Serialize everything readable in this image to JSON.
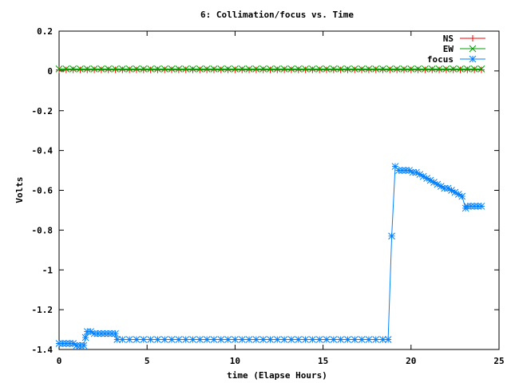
{
  "chart_data": {
    "type": "line",
    "title": "6: Collimation/focus vs. Time",
    "xlabel": "time (Elapse Hours)",
    "ylabel": "Volts",
    "xlim": [
      0,
      25
    ],
    "ylim": [
      -1.4,
      0.2
    ],
    "xticks": [
      "0",
      "5",
      "10",
      "15",
      "20",
      "25"
    ],
    "yticks": [
      "0.2",
      "0",
      "-0.2",
      "-0.4",
      "-0.6",
      "-0.8",
      "-1",
      "-1.2",
      "-1.4"
    ],
    "grid": false,
    "legend_position": "top-right",
    "series": [
      {
        "name": "NS",
        "color": "#ff0000",
        "marker": "plus",
        "x": [
          0.0,
          0.4,
          0.8,
          1.2,
          1.6,
          2.0,
          2.4,
          2.8,
          3.2,
          3.6,
          4.0,
          4.4,
          4.8,
          5.2,
          5.6,
          6.0,
          6.4,
          6.8,
          7.2,
          7.6,
          8.0,
          8.4,
          8.8,
          9.2,
          9.6,
          10.0,
          10.4,
          10.8,
          11.2,
          11.6,
          12.0,
          12.4,
          12.8,
          13.2,
          13.6,
          14.0,
          14.4,
          14.8,
          15.2,
          15.6,
          16.0,
          16.4,
          16.8,
          17.2,
          17.6,
          18.0,
          18.4,
          18.8,
          19.2,
          19.6,
          20.0,
          20.4,
          20.8,
          21.2,
          21.6,
          22.0,
          22.4,
          22.8,
          23.2,
          23.6,
          24.0
        ],
        "y": [
          0.005,
          0.005,
          0.005,
          0.005,
          0.005,
          0.005,
          0.005,
          0.005,
          0.005,
          0.005,
          0.005,
          0.005,
          0.005,
          0.005,
          0.005,
          0.005,
          0.005,
          0.005,
          0.005,
          0.005,
          0.005,
          0.005,
          0.005,
          0.005,
          0.005,
          0.005,
          0.005,
          0.005,
          0.005,
          0.005,
          0.005,
          0.005,
          0.005,
          0.005,
          0.005,
          0.005,
          0.005,
          0.005,
          0.005,
          0.005,
          0.005,
          0.005,
          0.005,
          0.005,
          0.005,
          0.005,
          0.005,
          0.005,
          0.005,
          0.005,
          0.005,
          0.005,
          0.005,
          0.005,
          0.005,
          0.005,
          0.005,
          0.005,
          0.005,
          0.005,
          0.005
        ]
      },
      {
        "name": "EW",
        "color": "#00a000",
        "marker": "cross",
        "x": [
          0.0,
          0.4,
          0.8,
          1.2,
          1.6,
          2.0,
          2.4,
          2.8,
          3.2,
          3.6,
          4.0,
          4.4,
          4.8,
          5.2,
          5.6,
          6.0,
          6.4,
          6.8,
          7.2,
          7.6,
          8.0,
          8.4,
          8.8,
          9.2,
          9.6,
          10.0,
          10.4,
          10.8,
          11.2,
          11.6,
          12.0,
          12.4,
          12.8,
          13.2,
          13.6,
          14.0,
          14.4,
          14.8,
          15.2,
          15.6,
          16.0,
          16.4,
          16.8,
          17.2,
          17.6,
          18.0,
          18.4,
          18.8,
          19.2,
          19.6,
          20.0,
          20.4,
          20.8,
          21.2,
          21.6,
          22.0,
          22.4,
          22.8,
          23.2,
          23.6,
          24.0
        ],
        "y": [
          0.01,
          0.01,
          0.01,
          0.01,
          0.01,
          0.01,
          0.01,
          0.01,
          0.01,
          0.01,
          0.01,
          0.01,
          0.01,
          0.01,
          0.01,
          0.01,
          0.01,
          0.01,
          0.01,
          0.01,
          0.01,
          0.01,
          0.01,
          0.01,
          0.01,
          0.01,
          0.01,
          0.01,
          0.01,
          0.01,
          0.01,
          0.01,
          0.01,
          0.01,
          0.01,
          0.01,
          0.01,
          0.01,
          0.01,
          0.01,
          0.01,
          0.01,
          0.01,
          0.01,
          0.01,
          0.01,
          0.01,
          0.01,
          0.01,
          0.01,
          0.01,
          0.01,
          0.01,
          0.01,
          0.01,
          0.01,
          0.01,
          0.01,
          0.01,
          0.01,
          0.01
        ]
      },
      {
        "name": "focus",
        "color": "#0080ff",
        "marker": "star",
        "x": [
          0.0,
          0.2,
          0.4,
          0.6,
          0.8,
          1.0,
          1.2,
          1.4,
          1.5,
          1.6,
          1.8,
          2.0,
          2.2,
          2.4,
          2.6,
          2.8,
          3.0,
          3.2,
          3.3,
          3.6,
          4.0,
          4.4,
          4.8,
          5.2,
          5.6,
          6.0,
          6.4,
          6.8,
          7.2,
          7.6,
          8.0,
          8.4,
          8.8,
          9.2,
          9.6,
          10.0,
          10.4,
          10.8,
          11.2,
          11.6,
          12.0,
          12.4,
          12.8,
          13.2,
          13.6,
          14.0,
          14.4,
          14.8,
          15.2,
          15.6,
          16.0,
          16.4,
          16.8,
          17.2,
          17.6,
          18.0,
          18.4,
          18.7,
          18.9,
          19.1,
          19.3,
          19.5,
          19.7,
          19.9,
          20.1,
          20.3,
          20.5,
          20.7,
          20.9,
          21.1,
          21.3,
          21.5,
          21.7,
          21.9,
          22.1,
          22.3,
          22.5,
          22.7,
          22.9,
          23.1,
          23.2,
          23.4,
          23.6,
          23.8,
          24.0
        ],
        "y": [
          -1.37,
          -1.37,
          -1.37,
          -1.37,
          -1.37,
          -1.38,
          -1.38,
          -1.38,
          -1.34,
          -1.31,
          -1.31,
          -1.32,
          -1.32,
          -1.32,
          -1.32,
          -1.32,
          -1.32,
          -1.32,
          -1.35,
          -1.35,
          -1.35,
          -1.35,
          -1.35,
          -1.35,
          -1.35,
          -1.35,
          -1.35,
          -1.35,
          -1.35,
          -1.35,
          -1.35,
          -1.35,
          -1.35,
          -1.35,
          -1.35,
          -1.35,
          -1.35,
          -1.35,
          -1.35,
          -1.35,
          -1.35,
          -1.35,
          -1.35,
          -1.35,
          -1.35,
          -1.35,
          -1.35,
          -1.35,
          -1.35,
          -1.35,
          -1.35,
          -1.35,
          -1.35,
          -1.35,
          -1.35,
          -1.35,
          -1.35,
          -1.35,
          -0.83,
          -0.48,
          -0.5,
          -0.5,
          -0.5,
          -0.5,
          -0.51,
          -0.51,
          -0.52,
          -0.53,
          -0.54,
          -0.55,
          -0.56,
          -0.57,
          -0.58,
          -0.59,
          -0.59,
          -0.6,
          -0.61,
          -0.62,
          -0.63,
          -0.69,
          -0.68,
          -0.68,
          -0.68,
          -0.68,
          -0.68
        ]
      }
    ]
  }
}
